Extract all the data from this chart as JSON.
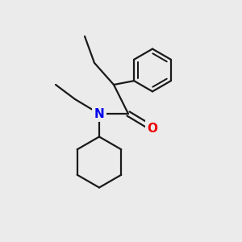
{
  "background_color": "#ebebeb",
  "bond_color": "#1a1a1a",
  "N_color": "#0000ee",
  "O_color": "#ee0000",
  "figsize": [
    3.0,
    3.0
  ],
  "dpi": 100,
  "lw": 1.6
}
